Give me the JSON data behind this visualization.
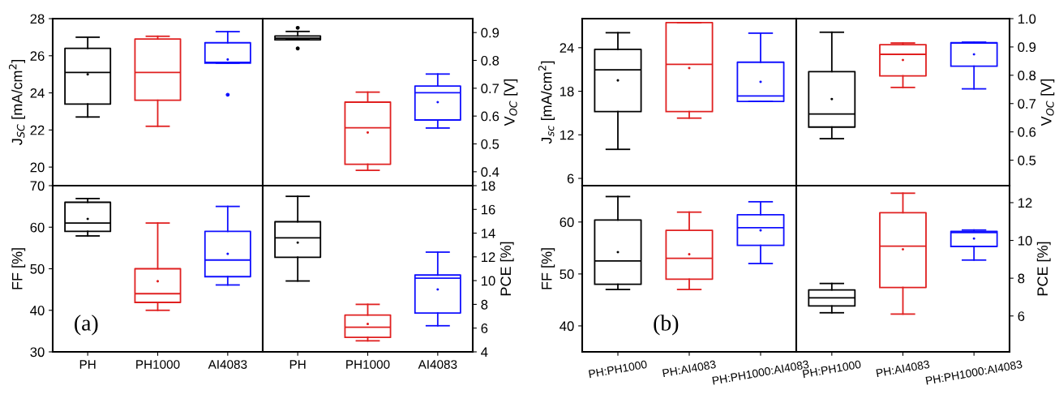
{
  "chart_data": [
    {
      "type": "box",
      "categories": [
        null,
        null,
        null
      ],
      "ylabel": "J$_{SC}$ [mA/cm$^{2}$]",
      "ylim": [
        19,
        28
      ],
      "yticks": [
        20,
        22,
        24,
        26,
        28
      ],
      "tick_labels": "y",
      "colors": [
        "#000000",
        "#e02020",
        "#1010ff"
      ],
      "boxes": [
        {
          "low": 22.7,
          "q1": 23.4,
          "median": 25.1,
          "q3": 26.4,
          "high": 27.0,
          "mean": 25.0
        },
        {
          "low": 22.2,
          "q1": 23.6,
          "median": 25.1,
          "q3": 26.9,
          "high": 27.05
        },
        {
          "low": 25.6,
          "q1": 25.6,
          "median": 25.65,
          "q3": 26.7,
          "high": 27.3,
          "mean": 25.8,
          "outliers": [
            23.9
          ]
        }
      ]
    },
    {
      "type": "box",
      "categories": [
        null,
        null,
        null
      ],
      "y2label": "V$_{OC}$ [V]",
      "y2lim": [
        0.35,
        0.95
      ],
      "y2ticks": [
        0.4,
        0.5,
        0.6,
        0.7,
        0.8,
        0.9
      ],
      "tick_labels": "y",
      "series": [
        {
          "axis": "y2",
          "colors": [
            "#000000",
            "#e02020",
            "#1010ff"
          ],
          "boxes": [
            {
              "low": 0.874,
              "q1": 0.874,
              "median": 0.88,
              "q3": 0.888,
              "high": 0.904,
              "outliers": [
                0.917,
                0.843
              ]
            },
            {
              "low": 0.405,
              "q1": 0.427,
              "median": 0.558,
              "q3": 0.65,
              "high": 0.686,
              "mean": 0.541
            },
            {
              "low": 0.557,
              "q1": 0.586,
              "median": 0.684,
              "q3": 0.708,
              "high": 0.751,
              "mean": 0.65
            }
          ]
        }
      ]
    },
    {
      "type": "box",
      "categories": [
        "PH",
        "PH1000",
        "AI4083"
      ],
      "ylabel": "FF [%]",
      "ylim": [
        30,
        70
      ],
      "yticks": [
        30,
        40,
        50,
        60,
        70
      ],
      "annotations": [
        "(a)"
      ],
      "colors": [
        "#000000",
        "#e02020",
        "#1010ff"
      ],
      "boxes": [
        {
          "low": 57.9,
          "q1": 59.0,
          "median": 61.0,
          "q3": 66.0,
          "high": 66.9,
          "mean": 62.0
        },
        {
          "low": 40.0,
          "q1": 41.9,
          "median": 44.0,
          "q3": 50.0,
          "high": 61.0,
          "mean": 47.0
        },
        {
          "low": 46.1,
          "q1": 48.1,
          "median": 52.1,
          "q3": 59.0,
          "high": 65.0,
          "mean": 53.6
        }
      ]
    },
    {
      "type": "box",
      "categories": [
        "PH",
        "PH1000",
        "AI4083"
      ],
      "y2label": "PCE [%]",
      "y2lim": [
        4,
        18
      ],
      "y2ticks": [
        4,
        6,
        8,
        10,
        12,
        14,
        16,
        18
      ],
      "series": [
        {
          "axis": "y2",
          "colors": [
            "#000000",
            "#e02020",
            "#1010ff"
          ],
          "boxes": [
            {
              "low": 9.97,
              "q1": 11.97,
              "median": 13.6,
              "q3": 14.96,
              "high": 17.1,
              "mean": 13.2
            },
            {
              "low": 4.93,
              "q1": 5.22,
              "median": 6.08,
              "q3": 7.1,
              "high": 8.0,
              "mean": 6.35
            },
            {
              "low": 6.2,
              "q1": 7.27,
              "median": 10.2,
              "q3": 10.47,
              "high": 12.4,
              "mean": 9.26
            }
          ]
        }
      ]
    },
    {
      "type": "box",
      "categories": [
        null,
        null,
        null
      ],
      "ylabel": "J$_{sc}$ [mA/cm$^{2}$]",
      "ylim": [
        5,
        28
      ],
      "yticks": [
        6,
        12,
        18,
        24
      ],
      "tick_labels": "y",
      "colors": [
        "#000000",
        "#e02020",
        "#1010ff"
      ],
      "boxes": [
        {
          "low": 10.0,
          "q1": 15.2,
          "median": 20.95,
          "q3": 23.77,
          "high": 26.06,
          "mean": 19.5
        },
        {
          "low": 14.3,
          "q1": 15.2,
          "median": 21.7,
          "q3": 27.45,
          "high": 27.45,
          "mean": 21.2
        },
        {
          "low": 16.6,
          "q1": 16.6,
          "median": 17.35,
          "q3": 22.0,
          "high": 26.0,
          "mean": 19.3
        }
      ]
    },
    {
      "type": "box",
      "categories": [
        null,
        null,
        null
      ],
      "y2label": "V$_{OC}$ [V]",
      "y2lim": [
        0.41,
        1.0
      ],
      "y2ticks": [
        0.5,
        0.6,
        0.7,
        0.8,
        0.9,
        {
          "value": 1,
          "label": "1.0"
        }
      ],
      "tick_labels": "y",
      "series": [
        {
          "axis": "y2",
          "colors": [
            "#000000",
            "#e02020",
            "#1010ff"
          ],
          "boxes": [
            {
              "low": 0.576,
              "q1": 0.617,
              "median": 0.663,
              "q3": 0.813,
              "high": 0.952,
              "mean": 0.716
            },
            {
              "low": 0.757,
              "q1": 0.798,
              "median": 0.874,
              "q3": 0.908,
              "high": 0.914,
              "mean": 0.854
            },
            {
              "low": 0.752,
              "q1": 0.832,
              "median": 0.914,
              "q3": 0.915,
              "high": 0.917,
              "mean": 0.874
            }
          ]
        }
      ]
    },
    {
      "type": "box",
      "categories": [
        "PH:PH1000",
        "PH:AI4083",
        "PH:PH1000:AI4083"
      ],
      "ylabel": "FF [%]",
      "ylim": [
        35,
        67
      ],
      "yticks": [
        40,
        50,
        60
      ],
      "annotations": [
        "(b)"
      ],
      "colors": [
        "#000000",
        "#e02020",
        "#1010ff"
      ],
      "boxes": [
        {
          "low": 47.0,
          "q1": 48.0,
          "median": 52.5,
          "q3": 60.4,
          "high": 64.9,
          "mean": 54.2
        },
        {
          "low": 47.0,
          "q1": 49.0,
          "median": 53.0,
          "q3": 58.4,
          "high": 61.9,
          "mean": 53.8
        },
        {
          "low": 52.0,
          "q1": 55.5,
          "median": 58.9,
          "q3": 61.4,
          "high": 63.9,
          "mean": 58.4
        }
      ]
    },
    {
      "type": "box",
      "categories": [
        "PH:PH1000",
        "PH:AI4083",
        "PH:PH1000:AI4083"
      ],
      "y2label": "PCE [%]",
      "y2lim": [
        4.1,
        12.9
      ],
      "y2ticks": [
        6,
        8,
        10,
        12
      ],
      "series": [
        {
          "axis": "y2",
          "colors": [
            "#000000",
            "#e02020",
            "#1010ff"
          ],
          "boxes": [
            {
              "low": 6.17,
              "q1": 6.53,
              "median": 6.96,
              "q3": 7.38,
              "high": 7.72
            },
            {
              "low": 6.1,
              "q1": 7.51,
              "median": 9.7,
              "q3": 11.47,
              "high": 12.5,
              "mean": 9.53
            },
            {
              "low": 8.96,
              "q1": 9.68,
              "median": 10.42,
              "q3": 10.48,
              "high": 10.55,
              "mean": 10.1
            }
          ]
        }
      ]
    }
  ]
}
